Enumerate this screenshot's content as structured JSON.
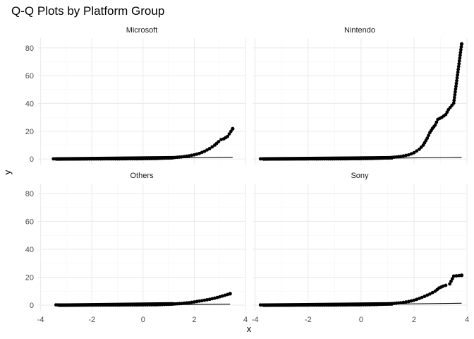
{
  "chart_data": {
    "type": "scatter",
    "title": "Q-Q Plots by Platform Group",
    "xlabel": "x",
    "ylabel": "y",
    "layout": "facet-grid 2x2",
    "grid": true,
    "x_ticks": [
      -4,
      -2,
      0,
      2,
      4
    ],
    "y_ticks": [
      0,
      20,
      40,
      60,
      80
    ],
    "xlim": [
      -4.1,
      4.0
    ],
    "ylim": [
      -4,
      87
    ],
    "colors": {
      "points": "#000000",
      "line": "#000000",
      "grid": "#ebebeb",
      "grid_minor": "#f5f5f5"
    },
    "facets": [
      {
        "name": "Microsoft",
        "x_range": [
          -3.5,
          3.5
        ],
        "ref_line": [
          [
            -3.5,
            -0.5
          ],
          [
            3.5,
            1.3
          ]
        ],
        "points": [
          [
            -3.5,
            0.1
          ],
          [
            -3.2,
            0.0
          ],
          [
            -3.0,
            0.0
          ],
          [
            -2.6,
            0.0
          ],
          [
            -2.0,
            0.05
          ],
          [
            -1.0,
            0.1
          ],
          [
            0.0,
            0.2
          ],
          [
            0.5,
            0.35
          ],
          [
            1.0,
            0.7
          ],
          [
            1.5,
            1.5
          ],
          [
            1.8,
            2.3
          ],
          [
            2.0,
            3.0
          ],
          [
            2.2,
            4.0
          ],
          [
            2.4,
            5.5
          ],
          [
            2.6,
            7.5
          ],
          [
            2.8,
            10.0
          ],
          [
            2.95,
            12.5
          ],
          [
            3.05,
            14.0
          ],
          [
            3.15,
            14.5
          ],
          [
            3.3,
            16.2
          ],
          [
            3.5,
            21.8
          ]
        ]
      },
      {
        "name": "Nintendo",
        "x_range": [
          -3.8,
          3.8
        ],
        "ref_line": [
          [
            -3.8,
            -0.5
          ],
          [
            3.8,
            1.2
          ]
        ],
        "points": [
          [
            -3.8,
            0.1
          ],
          [
            -3.4,
            0.0
          ],
          [
            -3.0,
            0.0
          ],
          [
            -2.0,
            0.05
          ],
          [
            -1.0,
            0.1
          ],
          [
            0.0,
            0.25
          ],
          [
            0.5,
            0.4
          ],
          [
            1.0,
            0.8
          ],
          [
            1.5,
            1.8
          ],
          [
            1.8,
            3.0
          ],
          [
            2.0,
            4.5
          ],
          [
            2.2,
            7.0
          ],
          [
            2.35,
            10.0
          ],
          [
            2.5,
            15.0
          ],
          [
            2.6,
            19.0
          ],
          [
            2.7,
            22.0
          ],
          [
            2.8,
            24.5
          ],
          [
            2.9,
            28.5
          ],
          [
            3.05,
            30.0
          ],
          [
            3.2,
            32.0
          ],
          [
            3.3,
            35.5
          ],
          [
            3.5,
            40.2
          ],
          [
            3.8,
            82.8
          ]
        ]
      },
      {
        "name": "Others",
        "x_range": [
          -3.4,
          3.4
        ],
        "ref_line": [
          [
            -3.4,
            -0.2
          ],
          [
            3.4,
            0.7
          ]
        ],
        "points": [
          [
            -3.4,
            0.2
          ],
          [
            -3.0,
            0.0
          ],
          [
            -2.6,
            0.05
          ],
          [
            -2.0,
            0.05
          ],
          [
            -1.0,
            0.1
          ],
          [
            0.0,
            0.2
          ],
          [
            0.5,
            0.3
          ],
          [
            1.0,
            0.6
          ],
          [
            1.5,
            1.2
          ],
          [
            1.8,
            1.8
          ],
          [
            2.0,
            2.3
          ],
          [
            2.3,
            3.2
          ],
          [
            2.6,
            4.2
          ],
          [
            2.8,
            5.0
          ],
          [
            3.0,
            6.0
          ],
          [
            3.4,
            8.2
          ]
        ]
      },
      {
        "name": "Sony",
        "x_range": [
          -3.8,
          3.8
        ],
        "ref_line": [
          [
            -3.8,
            -0.5
          ],
          [
            3.8,
            1.4
          ]
        ],
        "points": [
          [
            -3.8,
            0.15
          ],
          [
            -3.4,
            0.0
          ],
          [
            -3.0,
            0.0
          ],
          [
            -2.0,
            0.05
          ],
          [
            -1.0,
            0.1
          ],
          [
            0.0,
            0.25
          ],
          [
            0.5,
            0.4
          ],
          [
            1.0,
            0.8
          ],
          [
            1.5,
            1.7
          ],
          [
            1.8,
            2.6
          ],
          [
            2.0,
            3.5
          ],
          [
            2.2,
            4.8
          ],
          [
            2.4,
            6.3
          ],
          [
            2.6,
            8.0
          ],
          [
            2.8,
            10.0
          ],
          [
            2.95,
            12.3
          ],
          [
            3.1,
            13.6
          ],
          [
            3.2,
            14.2
          ],
          [
            3.35,
            15.2
          ],
          [
            3.5,
            20.8
          ],
          [
            3.8,
            21.4
          ]
        ]
      }
    ]
  }
}
